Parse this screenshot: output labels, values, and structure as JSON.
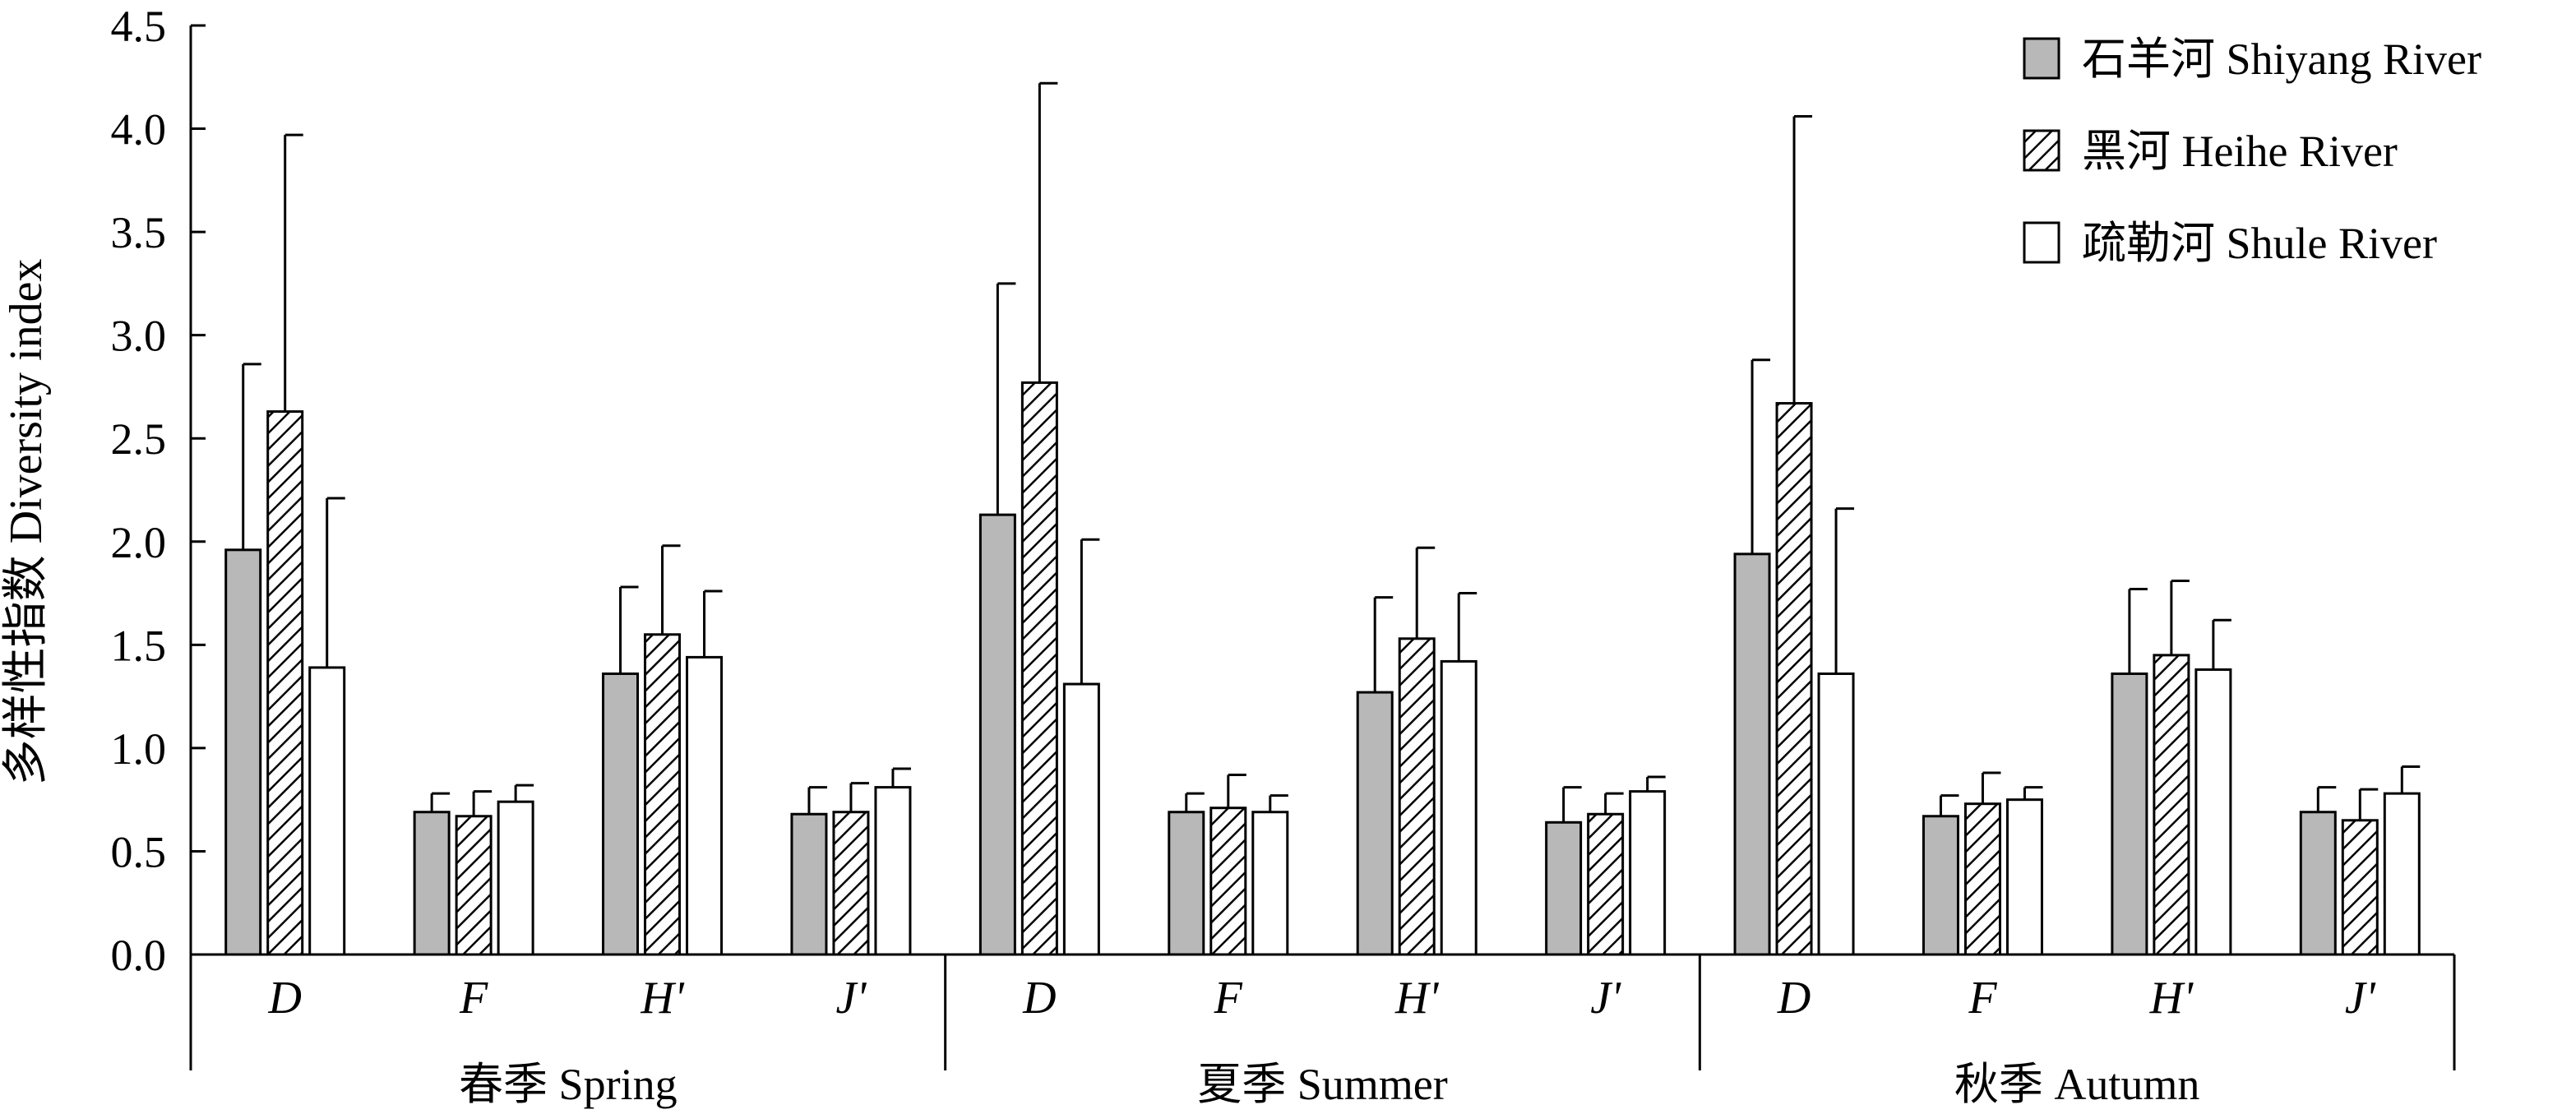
{
  "chart_data": {
    "type": "bar",
    "ylabel": "多样性指数 Diversity index",
    "ylim": [
      0,
      4.5
    ],
    "yticks": [
      "0.0",
      "0.5",
      "1.0",
      "1.5",
      "2.0",
      "2.5",
      "3.0",
      "3.5",
      "4.0",
      "4.5"
    ],
    "groups": [
      {
        "label": "春季 Spring",
        "categories": [
          "D",
          "F",
          "H'",
          "J'"
        ]
      },
      {
        "label": "夏季 Summer",
        "categories": [
          "D",
          "F",
          "H'",
          "J'"
        ]
      },
      {
        "label": "秋季 Autumn",
        "categories": [
          "D",
          "F",
          "H'",
          "J'"
        ]
      }
    ],
    "series": [
      {
        "name": "石羊河 Shiyang River",
        "fill": "gray",
        "color": "#b8b8b8",
        "values": [
          1.96,
          0.69,
          1.36,
          0.68,
          2.13,
          0.69,
          1.27,
          0.64,
          1.94,
          0.67,
          1.36,
          0.69
        ],
        "errors": [
          0.9,
          0.09,
          0.42,
          0.13,
          1.12,
          0.09,
          0.46,
          0.17,
          0.94,
          0.1,
          0.41,
          0.12
        ]
      },
      {
        "name": "黑河 Heihe River",
        "fill": "hatched",
        "color": "#000000",
        "values": [
          2.63,
          0.67,
          1.55,
          0.69,
          2.77,
          0.71,
          1.53,
          0.68,
          2.67,
          0.73,
          1.45,
          0.65
        ],
        "errors": [
          1.34,
          0.12,
          0.43,
          0.14,
          1.45,
          0.16,
          0.44,
          0.1,
          1.39,
          0.15,
          0.36,
          0.15
        ]
      },
      {
        "name": "疏勒河 Shule River",
        "fill": "white",
        "color": "#ffffff",
        "values": [
          1.39,
          0.74,
          1.44,
          0.81,
          1.31,
          0.69,
          1.42,
          0.79,
          1.36,
          0.75,
          1.38,
          0.78
        ],
        "errors": [
          0.82,
          0.08,
          0.32,
          0.09,
          0.7,
          0.08,
          0.33,
          0.07,
          0.8,
          0.06,
          0.24,
          0.13
        ]
      }
    ],
    "legend_position": "top-right",
    "grid": false
  }
}
